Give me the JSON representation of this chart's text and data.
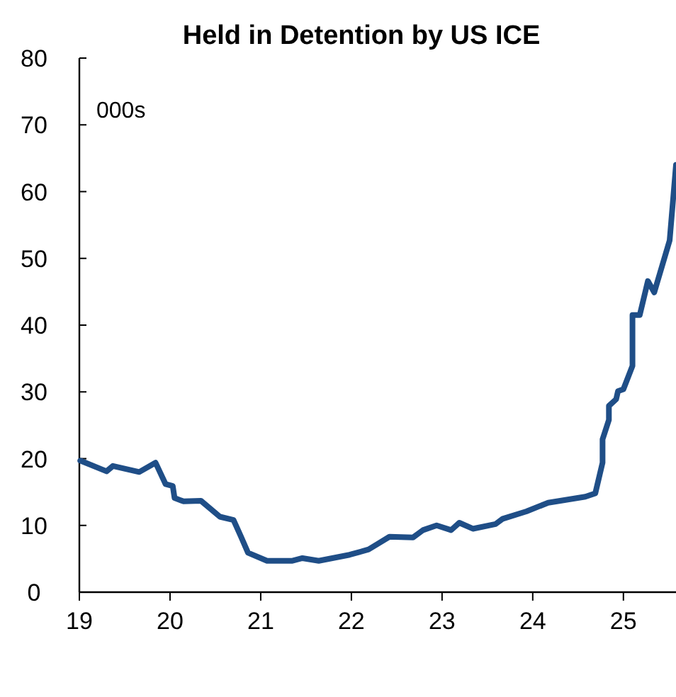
{
  "chart_data": {
    "type": "line",
    "title": "Held in Detention by US ICE",
    "annotations": [
      "000s"
    ],
    "xlim": [
      19,
      25.58
    ],
    "xticks": [
      19,
      20,
      21,
      22,
      23,
      24,
      25
    ],
    "ylim": [
      0,
      80
    ],
    "yticks": [
      0,
      10,
      20,
      30,
      40,
      50,
      60,
      70,
      80
    ],
    "marker": "none",
    "line_style": "solid",
    "series": [
      {
        "color": "#1f4e87",
        "x": [
          19.01,
          19.3,
          19.37,
          19.66,
          19.84,
          19.95,
          20.03,
          20.05,
          20.15,
          20.34,
          20.55,
          20.7,
          20.78,
          20.86,
          21.07,
          21.35,
          21.46,
          21.64,
          21.98,
          22.19,
          22.42,
          22.68,
          22.79,
          22.94,
          23.1,
          23.19,
          23.34,
          23.59,
          23.67,
          23.93,
          24.17,
          24.58,
          24.69,
          24.77,
          24.77,
          24.84,
          24.84,
          24.92,
          24.94,
          25.0,
          25.1,
          25.1,
          25.18,
          25.27,
          25.34,
          25.51,
          25.58
        ],
        "values": [
          19.7,
          18.1,
          18.9,
          18.0,
          19.4,
          16.2,
          15.9,
          14.1,
          13.6,
          13.7,
          11.3,
          10.8,
          8.4,
          5.9,
          4.7,
          4.7,
          5.1,
          4.7,
          5.6,
          6.4,
          8.3,
          8.2,
          9.3,
          10.0,
          9.3,
          10.4,
          9.5,
          10.2,
          11.0,
          12.1,
          13.4,
          14.3,
          14.8,
          19.4,
          22.9,
          25.8,
          27.9,
          28.9,
          30.1,
          30.4,
          33.9,
          41.5,
          41.5,
          46.6,
          44.9,
          52.7,
          64.0
        ]
      }
    ]
  }
}
